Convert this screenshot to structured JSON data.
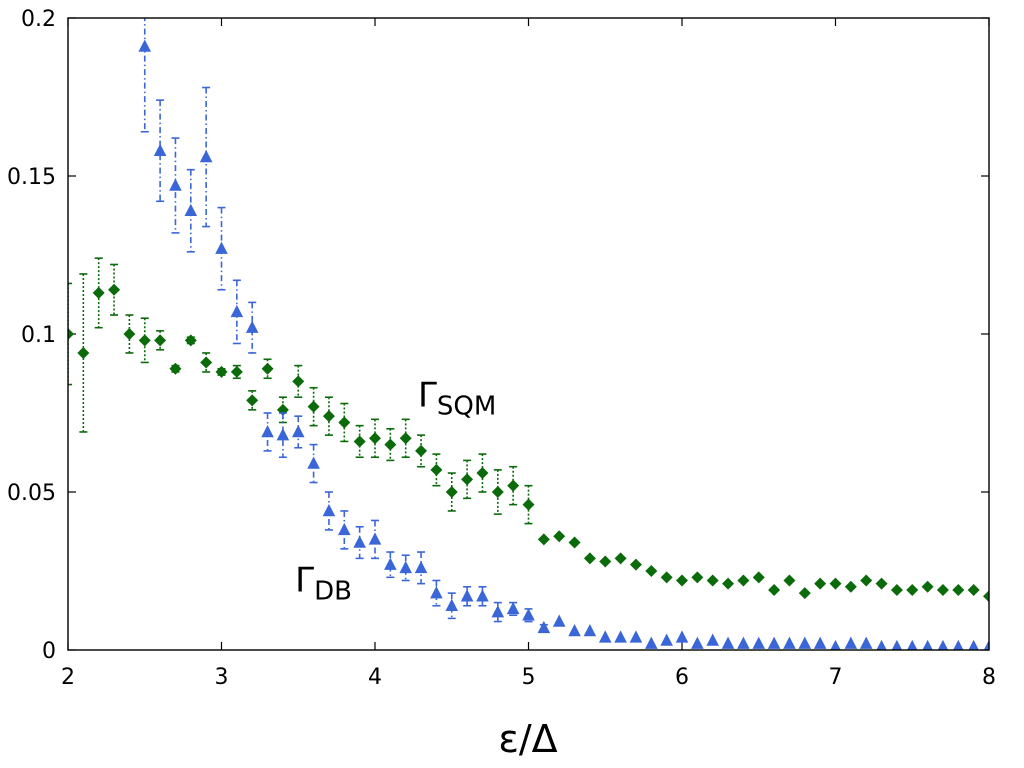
{
  "chart_data": {
    "type": "scatter",
    "title": "",
    "xlabel": "ε/Δ",
    "ylabel": "",
    "xlim": [
      2,
      8
    ],
    "ylim": [
      0,
      0.2
    ],
    "xticks": [
      "2",
      "3",
      "4",
      "5",
      "6",
      "7",
      "8"
    ],
    "yticks": [
      "0",
      "0.05",
      "0.1",
      "0.15",
      "0.2"
    ],
    "grid": false,
    "series": [
      {
        "name": "Γ_SQM",
        "marker": "diamond",
        "color": "#0b6b0b",
        "errorbar_style": "dotted",
        "x": [
          2.0,
          2.1,
          2.2,
          2.3,
          2.4,
          2.5,
          2.6,
          2.7,
          2.8,
          2.9,
          3.0,
          3.1,
          3.2,
          3.3,
          3.4,
          3.5,
          3.6,
          3.7,
          3.8,
          3.9,
          4.0,
          4.1,
          4.2,
          4.3,
          4.4,
          4.5,
          4.6,
          4.7,
          4.8,
          4.9,
          5.0,
          5.1,
          5.2,
          5.3,
          5.4,
          5.5,
          5.6,
          5.7,
          5.8,
          5.9,
          6.0,
          6.1,
          6.2,
          6.3,
          6.4,
          6.5,
          6.6,
          6.7,
          6.8,
          6.9,
          7.0,
          7.1,
          7.2,
          7.3,
          7.4,
          7.5,
          7.6,
          7.7,
          7.8,
          7.9,
          8.0
        ],
        "y": [
          0.1,
          0.094,
          0.113,
          0.114,
          0.1,
          0.098,
          0.098,
          0.089,
          0.098,
          0.091,
          0.088,
          0.088,
          0.079,
          0.089,
          0.076,
          0.085,
          0.077,
          0.074,
          0.072,
          0.066,
          0.067,
          0.065,
          0.067,
          0.063,
          0.057,
          0.05,
          0.054,
          0.056,
          0.05,
          0.052,
          0.046,
          0.035,
          0.036,
          0.034,
          0.029,
          0.028,
          0.029,
          0.027,
          0.025,
          0.023,
          0.022,
          0.023,
          0.022,
          0.021,
          0.022,
          0.023,
          0.019,
          0.022,
          0.018,
          0.021,
          0.021,
          0.02,
          0.022,
          0.021,
          0.019,
          0.019,
          0.02,
          0.019,
          0.019,
          0.019,
          0.017
        ],
        "err": [
          0.016,
          0.025,
          0.011,
          0.008,
          0.006,
          0.007,
          0.003,
          0.001,
          0.001,
          0.003,
          0.001,
          0.002,
          0.003,
          0.003,
          0.004,
          0.005,
          0.006,
          0.006,
          0.006,
          0.005,
          0.006,
          0.005,
          0.006,
          0.005,
          0.005,
          0.006,
          0.006,
          0.006,
          0.007,
          0.006,
          0.006,
          0,
          0,
          0,
          0,
          0,
          0,
          0,
          0,
          0,
          0,
          0,
          0,
          0,
          0,
          0,
          0,
          0,
          0,
          0,
          0,
          0,
          0,
          0,
          0,
          0,
          0,
          0,
          0,
          0,
          0
        ]
      },
      {
        "name": "Γ_DB",
        "marker": "triangle",
        "color": "#3a66d8",
        "errorbar_style": "dashdot",
        "x": [
          2.5,
          2.6,
          2.7,
          2.8,
          2.9,
          3.0,
          3.1,
          3.2,
          3.3,
          3.4,
          3.5,
          3.6,
          3.7,
          3.8,
          3.9,
          4.0,
          4.1,
          4.2,
          4.3,
          4.4,
          4.5,
          4.6,
          4.7,
          4.8,
          4.9,
          5.0,
          5.1,
          5.2,
          5.3,
          5.4,
          5.5,
          5.6,
          5.7,
          5.8,
          5.9,
          6.0,
          6.1,
          6.2,
          6.3,
          6.4,
          6.5,
          6.6,
          6.7,
          6.8,
          6.9,
          7.0,
          7.1,
          7.2,
          7.3,
          7.4,
          7.5,
          7.6,
          7.7,
          7.8,
          7.9,
          8.0
        ],
        "y": [
          0.191,
          0.158,
          0.147,
          0.139,
          0.156,
          0.127,
          0.107,
          0.102,
          0.069,
          0.068,
          0.069,
          0.059,
          0.044,
          0.038,
          0.034,
          0.035,
          0.027,
          0.026,
          0.026,
          0.018,
          0.014,
          0.017,
          0.017,
          0.012,
          0.013,
          0.011,
          0.007,
          0.009,
          0.006,
          0.006,
          0.004,
          0.004,
          0.004,
          0.002,
          0.003,
          0.004,
          0.002,
          0.003,
          0.002,
          0.002,
          0.002,
          0.002,
          0.002,
          0.002,
          0.002,
          0.001,
          0.002,
          0.002,
          0.001,
          0.001,
          0.001,
          0.001,
          0.001,
          0.001,
          0.001,
          0.001
        ],
        "err": [
          0.027,
          0.016,
          0.015,
          0.013,
          0.022,
          0.013,
          0.01,
          0.008,
          0.006,
          0.007,
          0.005,
          0.006,
          0.006,
          0.006,
          0.005,
          0.006,
          0.004,
          0.004,
          0.005,
          0.004,
          0.004,
          0.003,
          0.003,
          0.003,
          0.002,
          0.002,
          0.001,
          0,
          0,
          0,
          0,
          0,
          0,
          0,
          0,
          0,
          0,
          0,
          0,
          0,
          0,
          0,
          0,
          0,
          0,
          0,
          0,
          0,
          0,
          0,
          0,
          0,
          0,
          0,
          0,
          0
        ]
      }
    ],
    "annotations": [
      {
        "base": "Γ",
        "sub": "SQM",
        "x": 4.28,
        "y": 0.077
      },
      {
        "base": "Γ",
        "sub": "DB",
        "x": 3.48,
        "y": 0.0185
      }
    ]
  }
}
